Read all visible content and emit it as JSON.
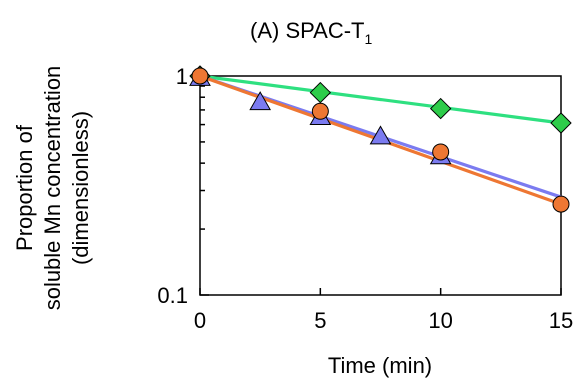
{
  "chart_data": {
    "type": "scatter",
    "title_main": "(A) SPAC-T",
    "title_sub": "1",
    "ylabel_line1": "Proportion of",
    "ylabel_line2": "soluble Mn concentration",
    "ylabel_line3": "(dimensionless)",
    "xlabel": "Time (min)",
    "xlim": [
      0,
      15
    ],
    "ylim": [
      0.1,
      1
    ],
    "yscale": "log",
    "grid": false,
    "xticks": [
      0,
      5,
      10,
      15
    ],
    "xtick_labels": [
      "0",
      "5",
      "10",
      "15"
    ],
    "yticks": [
      0.1,
      1
    ],
    "ytick_labels": [
      "0.1",
      "1"
    ],
    "series": [
      {
        "marker": "diamond",
        "color": "#2ecc4a",
        "line_color": "#2ee080",
        "x": [
          0,
          5,
          10,
          15
        ],
        "y": [
          1.0,
          0.84,
          0.71,
          0.61
        ],
        "fit": [
          [
            0,
            1.0
          ],
          [
            15,
            0.61
          ]
        ]
      },
      {
        "marker": "triangle",
        "color": "#7b7bf0",
        "line_color": "#7b7bf0",
        "x": [
          0,
          2.5,
          5,
          7.5,
          10
        ],
        "y": [
          0.98,
          0.76,
          0.65,
          0.53,
          0.43
        ],
        "fit": [
          [
            0,
            1.0
          ],
          [
            15,
            0.28
          ]
        ]
      },
      {
        "marker": "circle",
        "color": "#ee7733",
        "line_color": "#ee7733",
        "x": [
          0,
          5,
          10,
          15
        ],
        "y": [
          1.0,
          0.69,
          0.45,
          0.26
        ],
        "fit": [
          [
            0,
            1.0
          ],
          [
            15,
            0.26
          ]
        ]
      }
    ]
  }
}
